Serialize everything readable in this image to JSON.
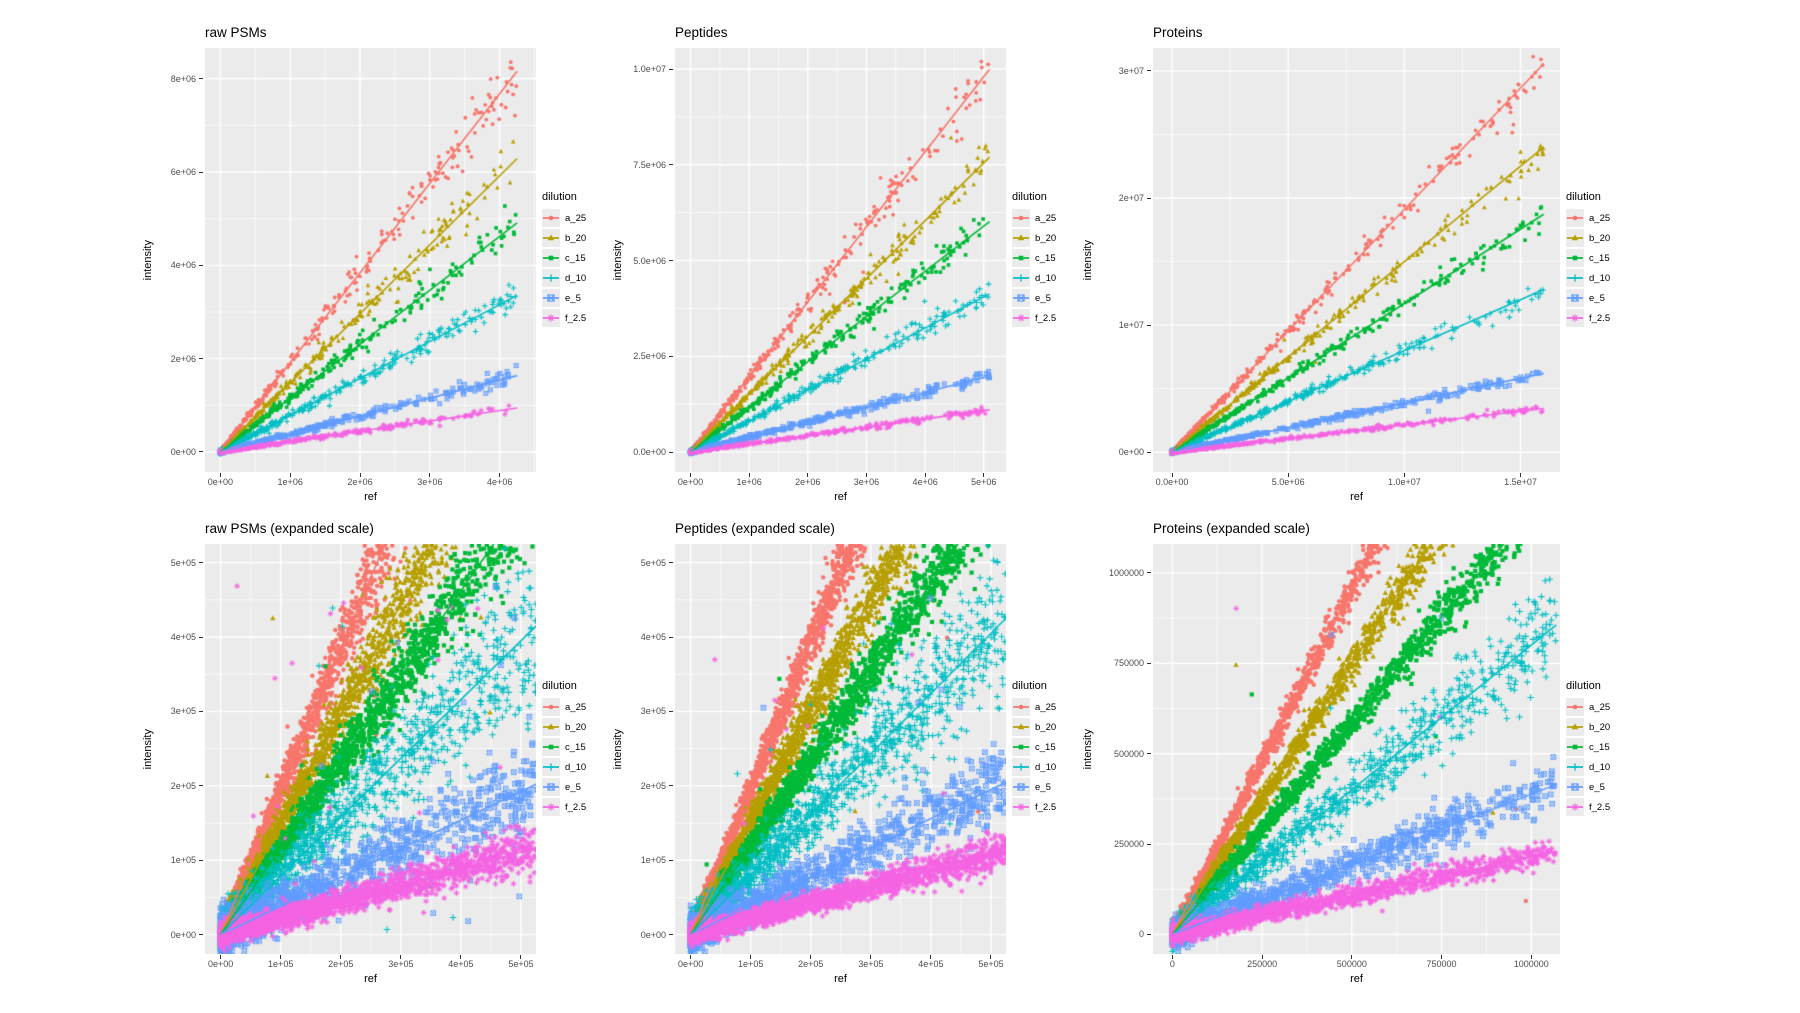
{
  "figure": {
    "background": "#FFFFFF",
    "panel_background": "#EBEBEB",
    "gridline_color": "#FFFFFF",
    "tick_mark_color": "#333333",
    "tick_label_color": "#4D4D4D",
    "title_color": "#000000"
  },
  "legend": {
    "title": "dilution",
    "position": "right",
    "entries": [
      {
        "label": "a_25",
        "color": "#F8766D",
        "shape": "circle"
      },
      {
        "label": "b_20",
        "color": "#B79F00",
        "shape": "triangle"
      },
      {
        "label": "c_15",
        "color": "#00BA38",
        "shape": "square"
      },
      {
        "label": "d_10",
        "color": "#00BFC4",
        "shape": "plus"
      },
      {
        "label": "e_5",
        "color": "#619CFF",
        "shape": "square-x"
      },
      {
        "label": "f_2.5",
        "color": "#F564E3",
        "shape": "asterisk"
      }
    ]
  },
  "chart_data": [
    {
      "type": "scatter",
      "title": "raw PSMs",
      "xlabel": "ref",
      "ylabel": "intensity",
      "grid": true,
      "legend_position": "right",
      "x_tick_labels": [
        "0e+00",
        "1e+06",
        "2e+06",
        "3e+06",
        "4e+06"
      ],
      "x_tick_values": [
        0,
        1000000.0,
        2000000.0,
        3000000.0,
        4000000.0
      ],
      "y_tick_labels": [
        "0e+00",
        "2e+06",
        "4e+06",
        "6e+06",
        "8e+06"
      ],
      "y_tick_values": [
        0,
        2000000.0,
        4000000.0,
        6000000.0,
        8000000.0
      ],
      "xlim": [
        -220000,
        4520000
      ],
      "ylim": [
        -430000,
        8660000
      ],
      "x_data_max": 4250000,
      "x_power": 2.8,
      "point_size": 1.9,
      "outlier_mode": "near-line",
      "series": [
        {
          "name": "a_25",
          "slope": 1.92,
          "n": 380,
          "rel_noise": 0.045,
          "abs_noise": 20000,
          "outliers": 3
        },
        {
          "name": "b_20",
          "slope": 1.48,
          "n": 380,
          "rel_noise": 0.045,
          "abs_noise": 20000,
          "outliers": 2
        },
        {
          "name": "c_15",
          "slope": 1.155,
          "n": 380,
          "rel_noise": 0.045,
          "abs_noise": 18000,
          "outliers": 2
        },
        {
          "name": "d_10",
          "slope": 0.79,
          "n": 380,
          "rel_noise": 0.05,
          "abs_noise": 18000,
          "outliers": 2
        },
        {
          "name": "e_5",
          "slope": 0.385,
          "n": 380,
          "rel_noise": 0.05,
          "abs_noise": 15000,
          "outliers": 2
        },
        {
          "name": "f_2.5",
          "slope": 0.222,
          "n": 380,
          "rel_noise": 0.05,
          "abs_noise": 12000,
          "outliers": 2
        }
      ]
    },
    {
      "type": "scatter",
      "title": "Peptides",
      "xlabel": "ref",
      "ylabel": "intensity",
      "grid": true,
      "legend_position": "right",
      "x_tick_labels": [
        "0e+00",
        "1e+06",
        "2e+06",
        "3e+06",
        "4e+06",
        "5e+06"
      ],
      "x_tick_values": [
        0,
        1000000.0,
        2000000.0,
        3000000.0,
        4000000.0,
        5000000.0
      ],
      "y_tick_labels": [
        "0.0e+00",
        "2.5e+06",
        "5.0e+06",
        "7.5e+06",
        "1.0e+07"
      ],
      "y_tick_values": [
        0,
        2500000.0,
        5000000.0,
        7500000.0,
        10000000.0
      ],
      "xlim": [
        -265000,
        5380000
      ],
      "ylim": [
        -520000,
        10550000
      ],
      "x_data_max": 5100000,
      "x_power": 2.8,
      "point_size": 1.9,
      "outlier_mode": "near-line",
      "series": [
        {
          "name": "a_25",
          "slope": 1.96,
          "n": 400,
          "rel_noise": 0.04,
          "abs_noise": 22000,
          "outliers": 3
        },
        {
          "name": "b_20",
          "slope": 1.51,
          "n": 400,
          "rel_noise": 0.04,
          "abs_noise": 22000,
          "outliers": 2
        },
        {
          "name": "c_15",
          "slope": 1.18,
          "n": 400,
          "rel_noise": 0.04,
          "abs_noise": 20000,
          "outliers": 2
        },
        {
          "name": "d_10",
          "slope": 0.81,
          "n": 400,
          "rel_noise": 0.045,
          "abs_noise": 20000,
          "outliers": 2
        },
        {
          "name": "e_5",
          "slope": 0.39,
          "n": 400,
          "rel_noise": 0.045,
          "abs_noise": 16000,
          "outliers": 2
        },
        {
          "name": "f_2.5",
          "slope": 0.216,
          "n": 400,
          "rel_noise": 0.05,
          "abs_noise": 13000,
          "outliers": 2
        }
      ]
    },
    {
      "type": "scatter",
      "title": "Proteins",
      "xlabel": "ref",
      "ylabel": "intensity",
      "grid": true,
      "legend_position": "right",
      "x_tick_labels": [
        "0.0e+00",
        "5.0e+06",
        "1.0e+07",
        "1.5e+07"
      ],
      "x_tick_values": [
        0,
        5000000.0,
        10000000.0,
        15000000.0
      ],
      "y_tick_labels": [
        "0e+00",
        "1e+07",
        "2e+07",
        "3e+07"
      ],
      "y_tick_values": [
        0,
        10000000.0,
        20000000.0,
        30000000.0
      ],
      "xlim": [
        -820000,
        16700000
      ],
      "ylim": [
        -1550000,
        31800000
      ],
      "x_data_max": 16000000,
      "x_power": 2.8,
      "point_size": 1.9,
      "outlier_mode": "near-line",
      "series": [
        {
          "name": "a_25",
          "slope": 1.91,
          "n": 420,
          "rel_noise": 0.03,
          "abs_noise": 60000,
          "outliers": 2
        },
        {
          "name": "b_20",
          "slope": 1.5,
          "n": 420,
          "rel_noise": 0.03,
          "abs_noise": 60000,
          "outliers": 2
        },
        {
          "name": "c_15",
          "slope": 1.17,
          "n": 420,
          "rel_noise": 0.03,
          "abs_noise": 55000,
          "outliers": 2
        },
        {
          "name": "d_10",
          "slope": 0.8,
          "n": 420,
          "rel_noise": 0.035,
          "abs_noise": 55000,
          "outliers": 2
        },
        {
          "name": "e_5",
          "slope": 0.388,
          "n": 420,
          "rel_noise": 0.035,
          "abs_noise": 45000,
          "outliers": 2
        },
        {
          "name": "f_2.5",
          "slope": 0.215,
          "n": 420,
          "rel_noise": 0.04,
          "abs_noise": 40000,
          "outliers": 2
        }
      ]
    },
    {
      "type": "scatter",
      "title": "raw PSMs (expanded scale)",
      "xlabel": "ref",
      "ylabel": "intensity",
      "grid": true,
      "legend_position": "right",
      "x_tick_labels": [
        "0e+00",
        "1e+05",
        "2e+05",
        "3e+05",
        "4e+05",
        "5e+05"
      ],
      "x_tick_values": [
        0,
        100000.0,
        200000.0,
        300000.0,
        400000.0,
        500000.0
      ],
      "y_tick_labels": [
        "0e+00",
        "1e+05",
        "2e+05",
        "3e+05",
        "4e+05",
        "5e+05"
      ],
      "y_tick_values": [
        0,
        100000.0,
        200000.0,
        300000.0,
        400000.0,
        500000.0
      ],
      "xlim": [
        -26000,
        525000
      ],
      "ylim": [
        -26000,
        525000
      ],
      "x_data_max": 525000,
      "x_power": 2.2,
      "point_size": 2.2,
      "outlier_mode": "uniform",
      "series": [
        {
          "name": "a_25",
          "slope": 1.92,
          "n": 2600,
          "rel_noise": 0.055,
          "abs_noise": 9000,
          "outliers": 5
        },
        {
          "name": "b_20",
          "slope": 1.48,
          "n": 2600,
          "rel_noise": 0.06,
          "abs_noise": 9000,
          "outliers": 8
        },
        {
          "name": "c_15",
          "slope": 1.155,
          "n": 2600,
          "rel_noise": 0.06,
          "abs_noise": 8000,
          "outliers": 6
        },
        {
          "name": "d_10",
          "slope": 0.79,
          "n": 1500,
          "rel_noise": 0.15,
          "abs_noise": 16000,
          "outliers": 10
        },
        {
          "name": "e_5",
          "slope": 0.385,
          "n": 1200,
          "rel_noise": 0.16,
          "abs_noise": 14000,
          "outliers": 26
        },
        {
          "name": "f_2.5",
          "slope": 0.222,
          "n": 2600,
          "rel_noise": 0.11,
          "abs_noise": 7000,
          "outliers": 24
        }
      ]
    },
    {
      "type": "scatter",
      "title": "Peptides (expanded scale)",
      "xlabel": "ref",
      "ylabel": "intensity",
      "grid": true,
      "legend_position": "right",
      "x_tick_labels": [
        "0e+00",
        "1e+05",
        "2e+05",
        "3e+05",
        "4e+05",
        "5e+05"
      ],
      "x_tick_values": [
        0,
        100000.0,
        200000.0,
        300000.0,
        400000.0,
        500000.0
      ],
      "y_tick_labels": [
        "0e+00",
        "1e+05",
        "2e+05",
        "3e+05",
        "4e+05",
        "5e+05"
      ],
      "y_tick_values": [
        0,
        100000.0,
        200000.0,
        300000.0,
        400000.0,
        500000.0
      ],
      "xlim": [
        -26000,
        525000
      ],
      "ylim": [
        -26000,
        525000
      ],
      "x_data_max": 525000,
      "x_power": 2.2,
      "point_size": 2.2,
      "outlier_mode": "uniform",
      "series": [
        {
          "name": "a_25",
          "slope": 1.96,
          "n": 3000,
          "rel_noise": 0.042,
          "abs_noise": 7000,
          "outliers": 2
        },
        {
          "name": "b_20",
          "slope": 1.51,
          "n": 3000,
          "rel_noise": 0.05,
          "abs_noise": 7000,
          "outliers": 3
        },
        {
          "name": "c_15",
          "slope": 1.18,
          "n": 3000,
          "rel_noise": 0.05,
          "abs_noise": 6500,
          "outliers": 3
        },
        {
          "name": "d_10",
          "slope": 0.81,
          "n": 1700,
          "rel_noise": 0.12,
          "abs_noise": 13000,
          "outliers": 6
        },
        {
          "name": "e_5",
          "slope": 0.39,
          "n": 1300,
          "rel_noise": 0.13,
          "abs_noise": 11000,
          "outliers": 8
        },
        {
          "name": "f_2.5",
          "slope": 0.216,
          "n": 2800,
          "rel_noise": 0.095,
          "abs_noise": 6000,
          "outliers": 10
        }
      ]
    },
    {
      "type": "scatter",
      "title": "Proteins (expanded scale)",
      "xlabel": "ref",
      "ylabel": "intensity",
      "grid": true,
      "legend_position": "right",
      "x_tick_labels": [
        "0",
        "250000",
        "500000",
        "750000",
        "1000000"
      ],
      "x_tick_values": [
        0,
        250000,
        500000,
        750000,
        1000000
      ],
      "y_tick_labels": [
        "0",
        "250000",
        "500000",
        "750000",
        "1000000"
      ],
      "y_tick_values": [
        0,
        250000,
        500000,
        750000,
        1000000
      ],
      "xlim": [
        -54000,
        1080000
      ],
      "ylim": [
        -54000,
        1080000
      ],
      "x_data_max": 1070000,
      "x_power": 1.9,
      "point_size": 2.2,
      "outlier_mode": "uniform",
      "series": [
        {
          "name": "a_25",
          "slope": 1.91,
          "n": 1900,
          "rel_noise": 0.028,
          "abs_noise": 12000,
          "outliers": 2
        },
        {
          "name": "b_20",
          "slope": 1.5,
          "n": 1900,
          "rel_noise": 0.03,
          "abs_noise": 12000,
          "outliers": 2
        },
        {
          "name": "c_15",
          "slope": 1.17,
          "n": 1900,
          "rel_noise": 0.033,
          "abs_noise": 11000,
          "outliers": 2
        },
        {
          "name": "d_10",
          "slope": 0.8,
          "n": 1100,
          "rel_noise": 0.085,
          "abs_noise": 20000,
          "outliers": 3
        },
        {
          "name": "e_5",
          "slope": 0.388,
          "n": 950,
          "rel_noise": 0.09,
          "abs_noise": 18000,
          "outliers": 3
        },
        {
          "name": "f_2.5",
          "slope": 0.215,
          "n": 1700,
          "rel_noise": 0.06,
          "abs_noise": 12000,
          "outliers": 3
        }
      ]
    }
  ]
}
